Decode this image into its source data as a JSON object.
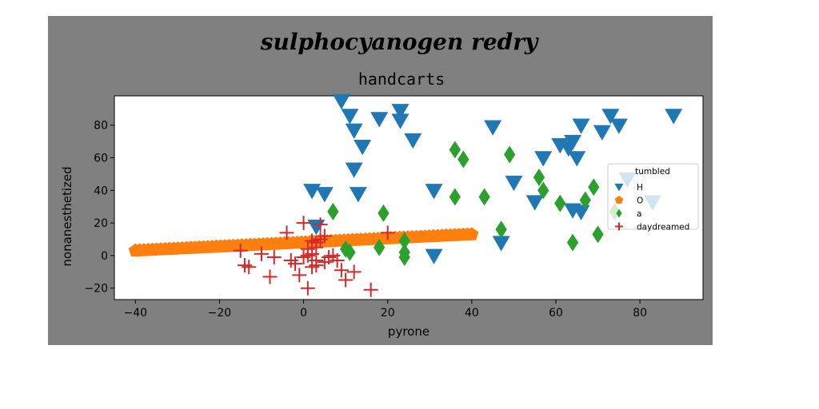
{
  "chart_data": {
    "type": "scatter",
    "suptitle": "sulphocyanogen redry",
    "title": "handcarts",
    "xlabel": "pyrone",
    "ylabel": "nonanesthetized",
    "xlim": [
      -45,
      95
    ],
    "ylim": [
      -27,
      98
    ],
    "xticks": [
      -40,
      -20,
      0,
      20,
      40,
      60,
      80
    ],
    "yticks": [
      -20,
      0,
      20,
      40,
      60,
      80
    ],
    "grid": false,
    "legend": {
      "title": "tumbled",
      "placement": "right"
    },
    "colors": {
      "H": "#1f77b4",
      "O": "#ff7f0e",
      "a": "#2ca02c",
      "daydreamed": "#d62728",
      "figure_bg": "#808080",
      "axes_bg": "#ffffff"
    },
    "series": [
      {
        "name": "H",
        "marker": "triangle-down",
        "points": [
          [
            9,
            95
          ],
          [
            11,
            86
          ],
          [
            12,
            77
          ],
          [
            14,
            67
          ],
          [
            18,
            84
          ],
          [
            23,
            89
          ],
          [
            23,
            83
          ],
          [
            26,
            71
          ],
          [
            12,
            53
          ],
          [
            13,
            38
          ],
          [
            2,
            40
          ],
          [
            5,
            38
          ],
          [
            3,
            18
          ],
          [
            31,
            40
          ],
          [
            31,
            0
          ],
          [
            45,
            79
          ],
          [
            47,
            8
          ],
          [
            50,
            45
          ],
          [
            55,
            33
          ],
          [
            57,
            60
          ],
          [
            61,
            68
          ],
          [
            63,
            66
          ],
          [
            64,
            70
          ],
          [
            65,
            60
          ],
          [
            64,
            28
          ],
          [
            66,
            27
          ],
          [
            66,
            80
          ],
          [
            71,
            76
          ],
          [
            73,
            86
          ],
          [
            75,
            80
          ],
          [
            77,
            47
          ],
          [
            83,
            33
          ],
          [
            88,
            86
          ]
        ]
      },
      {
        "name": "O",
        "marker": "pentagon",
        "x_range": [
          -40,
          40
        ],
        "y_range": [
          3,
          13
        ],
        "count": 80
      },
      {
        "name": "a",
        "marker": "diamond",
        "points": [
          [
            7,
            27
          ],
          [
            10,
            4
          ],
          [
            11,
            2
          ],
          [
            18,
            5
          ],
          [
            19,
            26
          ],
          [
            24,
            9
          ],
          [
            24,
            2
          ],
          [
            24,
            -1
          ],
          [
            36,
            65
          ],
          [
            38,
            59
          ],
          [
            36,
            36
          ],
          [
            43,
            36
          ],
          [
            47,
            16
          ],
          [
            49,
            62
          ],
          [
            56,
            48
          ],
          [
            57,
            40
          ],
          [
            61,
            32
          ],
          [
            64,
            8
          ],
          [
            67,
            34
          ],
          [
            69,
            42
          ],
          [
            70,
            13
          ],
          [
            74,
            27
          ]
        ]
      },
      {
        "name": "daydreamed",
        "marker": "plus",
        "points": [
          [
            -15,
            3
          ],
          [
            -14,
            -6
          ],
          [
            -13,
            -7
          ],
          [
            -10,
            1
          ],
          [
            -8,
            -13
          ],
          [
            -7,
            -1
          ],
          [
            -4,
            14
          ],
          [
            -3,
            -3
          ],
          [
            -2,
            -5
          ],
          [
            -1,
            -12
          ],
          [
            0,
            20
          ],
          [
            0,
            -1
          ],
          [
            1,
            4
          ],
          [
            1,
            -20
          ],
          [
            2,
            9
          ],
          [
            2,
            -7
          ],
          [
            3,
            8
          ],
          [
            3,
            -3
          ],
          [
            3,
            -6
          ],
          [
            4,
            10
          ],
          [
            4,
            19
          ],
          [
            5,
            12
          ],
          [
            5,
            -4
          ],
          [
            6,
            -1
          ],
          [
            7,
            0
          ],
          [
            8,
            -3
          ],
          [
            9,
            -9
          ],
          [
            10,
            -15
          ],
          [
            12,
            -10
          ],
          [
            16,
            -21
          ],
          [
            20,
            14
          ],
          [
            1,
            0
          ],
          [
            2,
            1
          ],
          [
            3,
            5
          ]
        ]
      }
    ]
  }
}
